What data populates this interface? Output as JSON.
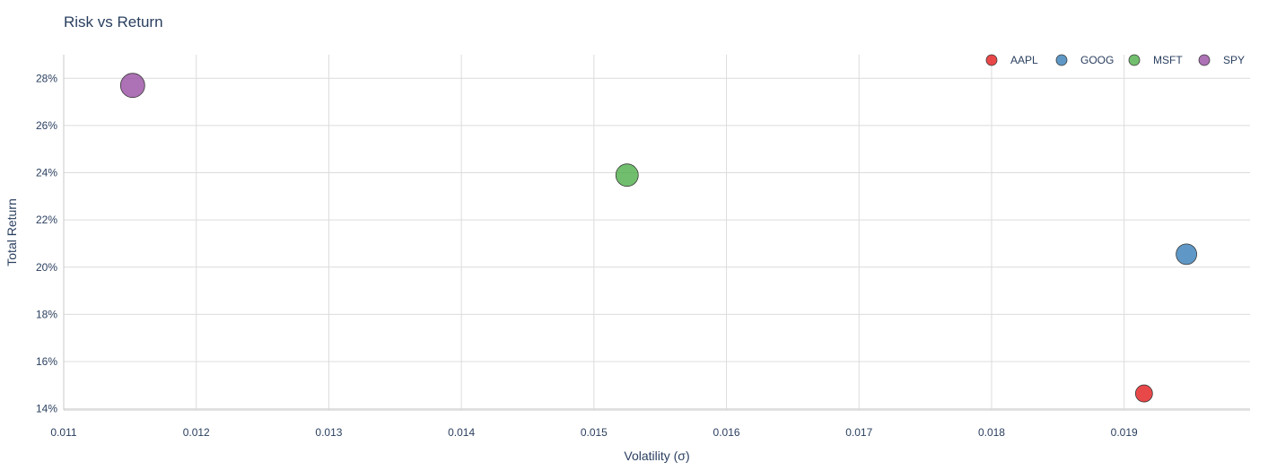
{
  "chart_data": {
    "type": "scatter",
    "title": "Risk vs Return",
    "xlabel": "Volatility (σ)",
    "ylabel": "Total Return",
    "xlim": [
      0.011,
      0.01995
    ],
    "ylim": [
      13.95,
      29.0
    ],
    "x_ticks": [
      0.011,
      0.012,
      0.013,
      0.014,
      0.015,
      0.016,
      0.017,
      0.018,
      0.019
    ],
    "x_tick_labels": [
      "0.011",
      "0.012",
      "0.013",
      "0.014",
      "0.015",
      "0.016",
      "0.017",
      "0.018",
      "0.019"
    ],
    "y_ticks": [
      14,
      16,
      18,
      20,
      22,
      24,
      26,
      28
    ],
    "y_tick_labels": [
      "14%",
      "16%",
      "18%",
      "20%",
      "22%",
      "24%",
      "26%",
      "28%"
    ],
    "grid": true,
    "legend_position": "top-right",
    "series": [
      {
        "name": "AAPL",
        "color": "#e41a1c",
        "points": [
          {
            "x": 0.01915,
            "y": 14.65
          }
        ],
        "size_rank": 1
      },
      {
        "name": "GOOG",
        "color": "#377eb8",
        "points": [
          {
            "x": 0.01947,
            "y": 20.55
          }
        ],
        "size_rank": 2
      },
      {
        "name": "MSFT",
        "color": "#4daf4a",
        "points": [
          {
            "x": 0.01525,
            "y": 23.9
          }
        ],
        "size_rank": 3
      },
      {
        "name": "SPY",
        "color": "#984ea3",
        "points": [
          {
            "x": 0.01152,
            "y": 27.7
          }
        ],
        "size_rank": 4
      }
    ]
  }
}
